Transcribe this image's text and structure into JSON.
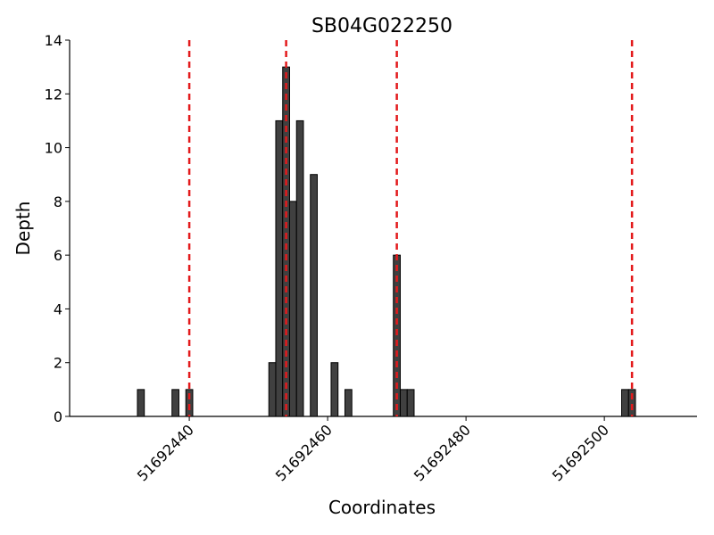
{
  "chart_data": {
    "type": "bar",
    "title": "SB04G022250",
    "xlabel": "Coordinates",
    "ylabel": "Depth",
    "x": [
      51692433,
      51692438,
      51692440,
      51692452,
      51692453,
      51692454,
      51692455,
      51692456,
      51692458,
      51692461,
      51692463,
      51692470,
      51692471,
      51692472,
      51692503,
      51692504
    ],
    "values": [
      1,
      1,
      1,
      2,
      11,
      13,
      8,
      11,
      9,
      2,
      1,
      6,
      1,
      1,
      1,
      1
    ],
    "color": "#404040",
    "edgecolor": "#000000",
    "vlines": [
      51692440,
      51692454,
      51692470,
      51692504
    ],
    "vline_color": "#e31a1c",
    "xlim": [
      51692422.7,
      51692513.4
    ],
    "xticks": [
      51692440,
      51692460,
      51692480,
      51692500
    ],
    "ylim": [
      0,
      14
    ],
    "yticks": [
      0,
      2,
      4,
      6,
      8,
      10,
      12,
      14
    ],
    "grid": false
  }
}
